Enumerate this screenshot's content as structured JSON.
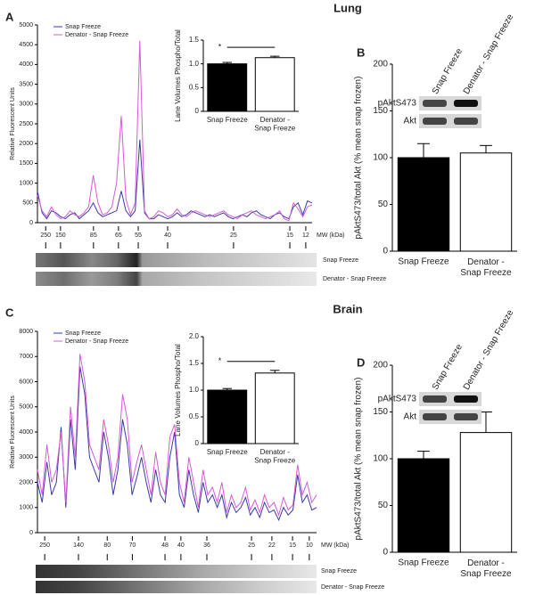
{
  "labels": {
    "lung": "Lung",
    "brain": "Brain",
    "panels": [
      "A",
      "B",
      "C",
      "D"
    ]
  },
  "gel_lanes": {
    "lung": [
      "Snap Freeze",
      "Denator - Snap Freeze"
    ],
    "brain": [
      "Snap Freeze",
      "Denator - Snap Freeze"
    ]
  },
  "chart_data": [
    {
      "type": "line",
      "y_label": "Relative Fluorescent Units",
      "x_label": "MW (kDa)",
      "ylim": [
        0,
        5000
      ],
      "yticks": [
        0,
        500,
        1000,
        1500,
        2000,
        2500,
        3000,
        3500,
        4000,
        4500,
        5000
      ],
      "mw_ticks": [
        250,
        150,
        85,
        65,
        55,
        40,
        25,
        15,
        12
      ],
      "series": [
        {
          "name": "Snap Freeze",
          "color": "#3a3aa8",
          "values": [
            800,
            250,
            100,
            300,
            250,
            150,
            100,
            200,
            250,
            100,
            200,
            300,
            500,
            250,
            150,
            200,
            250,
            300,
            800,
            300,
            150,
            300,
            2100,
            250,
            100,
            100,
            200,
            150,
            100,
            150,
            250,
            150,
            200,
            300,
            250,
            200,
            150,
            200,
            150,
            200,
            250,
            150,
            100,
            150,
            200,
            150,
            250,
            300,
            200,
            150,
            100,
            200,
            250,
            150,
            100,
            400,
            500,
            200,
            550,
            500
          ]
        },
        {
          "name": "Denator - Snap Freeze",
          "color": "#d65ad6",
          "values": [
            700,
            300,
            150,
            400,
            200,
            100,
            150,
            300,
            200,
            150,
            250,
            400,
            1200,
            500,
            200,
            250,
            400,
            1000,
            2700,
            600,
            200,
            500,
            4600,
            300,
            100,
            150,
            300,
            250,
            150,
            200,
            350,
            200,
            150,
            250,
            300,
            250,
            200,
            150,
            200,
            250,
            300,
            200,
            150,
            100,
            200,
            250,
            300,
            200,
            150,
            100,
            150,
            200,
            300,
            100,
            50,
            500,
            350,
            150,
            400,
            450
          ]
        }
      ]
    },
    {
      "type": "bar",
      "y_label": "Lane Volumes Phospho/Total",
      "categories": [
        "Snap Freeze",
        "Denator - Snap Freeze"
      ],
      "values": [
        1.0,
        1.13
      ],
      "errors": [
        0.03,
        0.03
      ],
      "colors": [
        "#000000",
        "#ffffff"
      ],
      "annotation": "*",
      "ylim": [
        0,
        1.5
      ],
      "yticks": [
        0,
        0.5,
        {
          "value": 1,
          "label": "1.0"
        },
        1.5
      ]
    },
    {
      "type": "bar",
      "y_label": "pAktS473/total Akt (% mean snap frozen)",
      "categories": [
        "Snap Freeze",
        "Denator - Snap Freeze"
      ],
      "values": [
        100,
        105
      ],
      "errors": [
        15,
        8
      ],
      "colors": [
        "#000000",
        "#ffffff"
      ],
      "ylim": [
        0,
        200
      ],
      "yticks": [
        0,
        50,
        100,
        150,
        200
      ],
      "blot_rows": [
        "pAktS473",
        "Akt"
      ],
      "blot_columns": [
        "Snap Freeze",
        "Denator - Snap Freeze"
      ]
    },
    {
      "type": "line",
      "y_label": "Relative Fluorescent Units",
      "x_label": "MW (kDa)",
      "ylim": [
        0,
        8000
      ],
      "yticks": [
        0,
        1000,
        2000,
        3000,
        4000,
        5000,
        6000,
        7000,
        8000
      ],
      "mw_ticks": [
        250,
        140,
        80,
        70,
        48,
        40,
        36,
        25,
        22,
        15,
        10
      ],
      "series": [
        {
          "name": "Snap Freeze",
          "color": "#3a3aa8",
          "values": [
            2000,
            1200,
            2800,
            1500,
            2000,
            4200,
            1000,
            4500,
            2500,
            6600,
            5500,
            3000,
            2500,
            2000,
            4000,
            3000,
            1500,
            2500,
            4500,
            3500,
            1500,
            2200,
            3000,
            2000,
            1200,
            2500,
            1500,
            1200,
            3000,
            4000,
            1500,
            1000,
            2500,
            1500,
            800,
            2000,
            1200,
            1500,
            1000,
            1500,
            600,
            1200,
            800,
            1000,
            1400,
            700,
            1000,
            600,
            1200,
            800,
            900,
            500,
            1000,
            700,
            900,
            2300,
            1200,
            1500,
            900,
            1000
          ]
        },
        {
          "name": "Denator - Snap Freeze",
          "color": "#d65ad6",
          "values": [
            2500,
            1500,
            3500,
            2000,
            2500,
            4000,
            1200,
            5000,
            3000,
            7100,
            6000,
            3500,
            3000,
            2500,
            4500,
            3500,
            2000,
            3000,
            5500,
            4500,
            2000,
            2800,
            3500,
            2500,
            1500,
            3200,
            2000,
            1500,
            3800,
            4300,
            2000,
            1200,
            3000,
            2000,
            1000,
            2500,
            1500,
            1800,
            1200,
            2000,
            800,
            1500,
            1000,
            1200,
            1800,
            900,
            1300,
            800,
            1500,
            1000,
            1200,
            700,
            1400,
            900,
            1100,
            2700,
            1500,
            2000,
            1200,
            1500
          ]
        }
      ]
    },
    {
      "type": "bar",
      "y_label": "Lane Volumes Phospho/Total",
      "categories": [
        "Snap Freeze",
        "Denator - Snap Freeze"
      ],
      "values": [
        1.0,
        1.32
      ],
      "errors": [
        0.03,
        0.05
      ],
      "colors": [
        "#000000",
        "#ffffff"
      ],
      "annotation": "*",
      "ylim": [
        0,
        2
      ],
      "yticks": [
        0,
        0.5,
        {
          "value": 1,
          "label": "1.0"
        },
        1.5,
        {
          "value": 2,
          "label": "2.0"
        }
      ]
    },
    {
      "type": "bar",
      "y_label": "pAktS473/total Akt (% mean snap frozen)",
      "categories": [
        "Snap Freeze",
        "Denator - Snap Freeze"
      ],
      "values": [
        100,
        128
      ],
      "errors": [
        8,
        22
      ],
      "colors": [
        "#000000",
        "#ffffff"
      ],
      "ylim": [
        0,
        200
      ],
      "yticks": [
        0,
        50,
        100,
        150,
        200
      ],
      "blot_rows": [
        "pAktS473",
        "Akt"
      ],
      "blot_columns": [
        "Snap Freeze",
        "Denator - Snap Freeze"
      ]
    }
  ]
}
